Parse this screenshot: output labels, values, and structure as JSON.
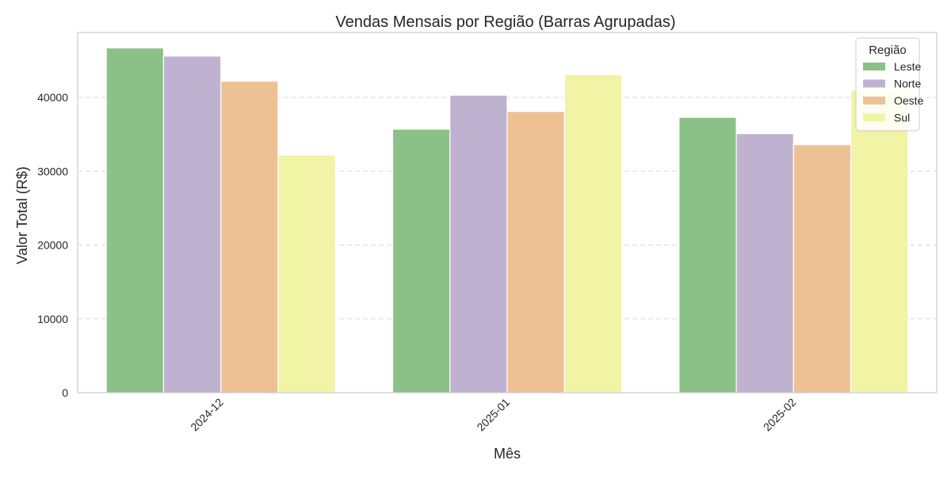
{
  "chart_data": {
    "type": "bar",
    "title": "Vendas Mensais por Região (Barras Agrupadas)",
    "xlabel": "Mês",
    "ylabel": "Valor Total (R$)",
    "categories": [
      "2024-12",
      "2025-01",
      "2025-02"
    ],
    "series": [
      {
        "name": "Leste",
        "color": "#8bc087",
        "values": [
          46700,
          35700,
          37300
        ]
      },
      {
        "name": "Norte",
        "color": "#bfb2d0",
        "values": [
          45600,
          40300,
          35100
        ]
      },
      {
        "name": "Oeste",
        "color": "#eec195",
        "values": [
          42200,
          38100,
          33600
        ]
      },
      {
        "name": "Sul",
        "color": "#f1f3a5",
        "values": [
          32200,
          43100,
          41000
        ]
      }
    ],
    "ylim": [
      0,
      48800
    ],
    "yticks": [
      0,
      10000,
      20000,
      30000,
      40000
    ],
    "ytick_labels": [
      "0",
      "10000",
      "20000",
      "30000",
      "40000"
    ],
    "grid": "horizontal dashed",
    "legend": {
      "title": "Região",
      "placement": "top-right"
    }
  }
}
